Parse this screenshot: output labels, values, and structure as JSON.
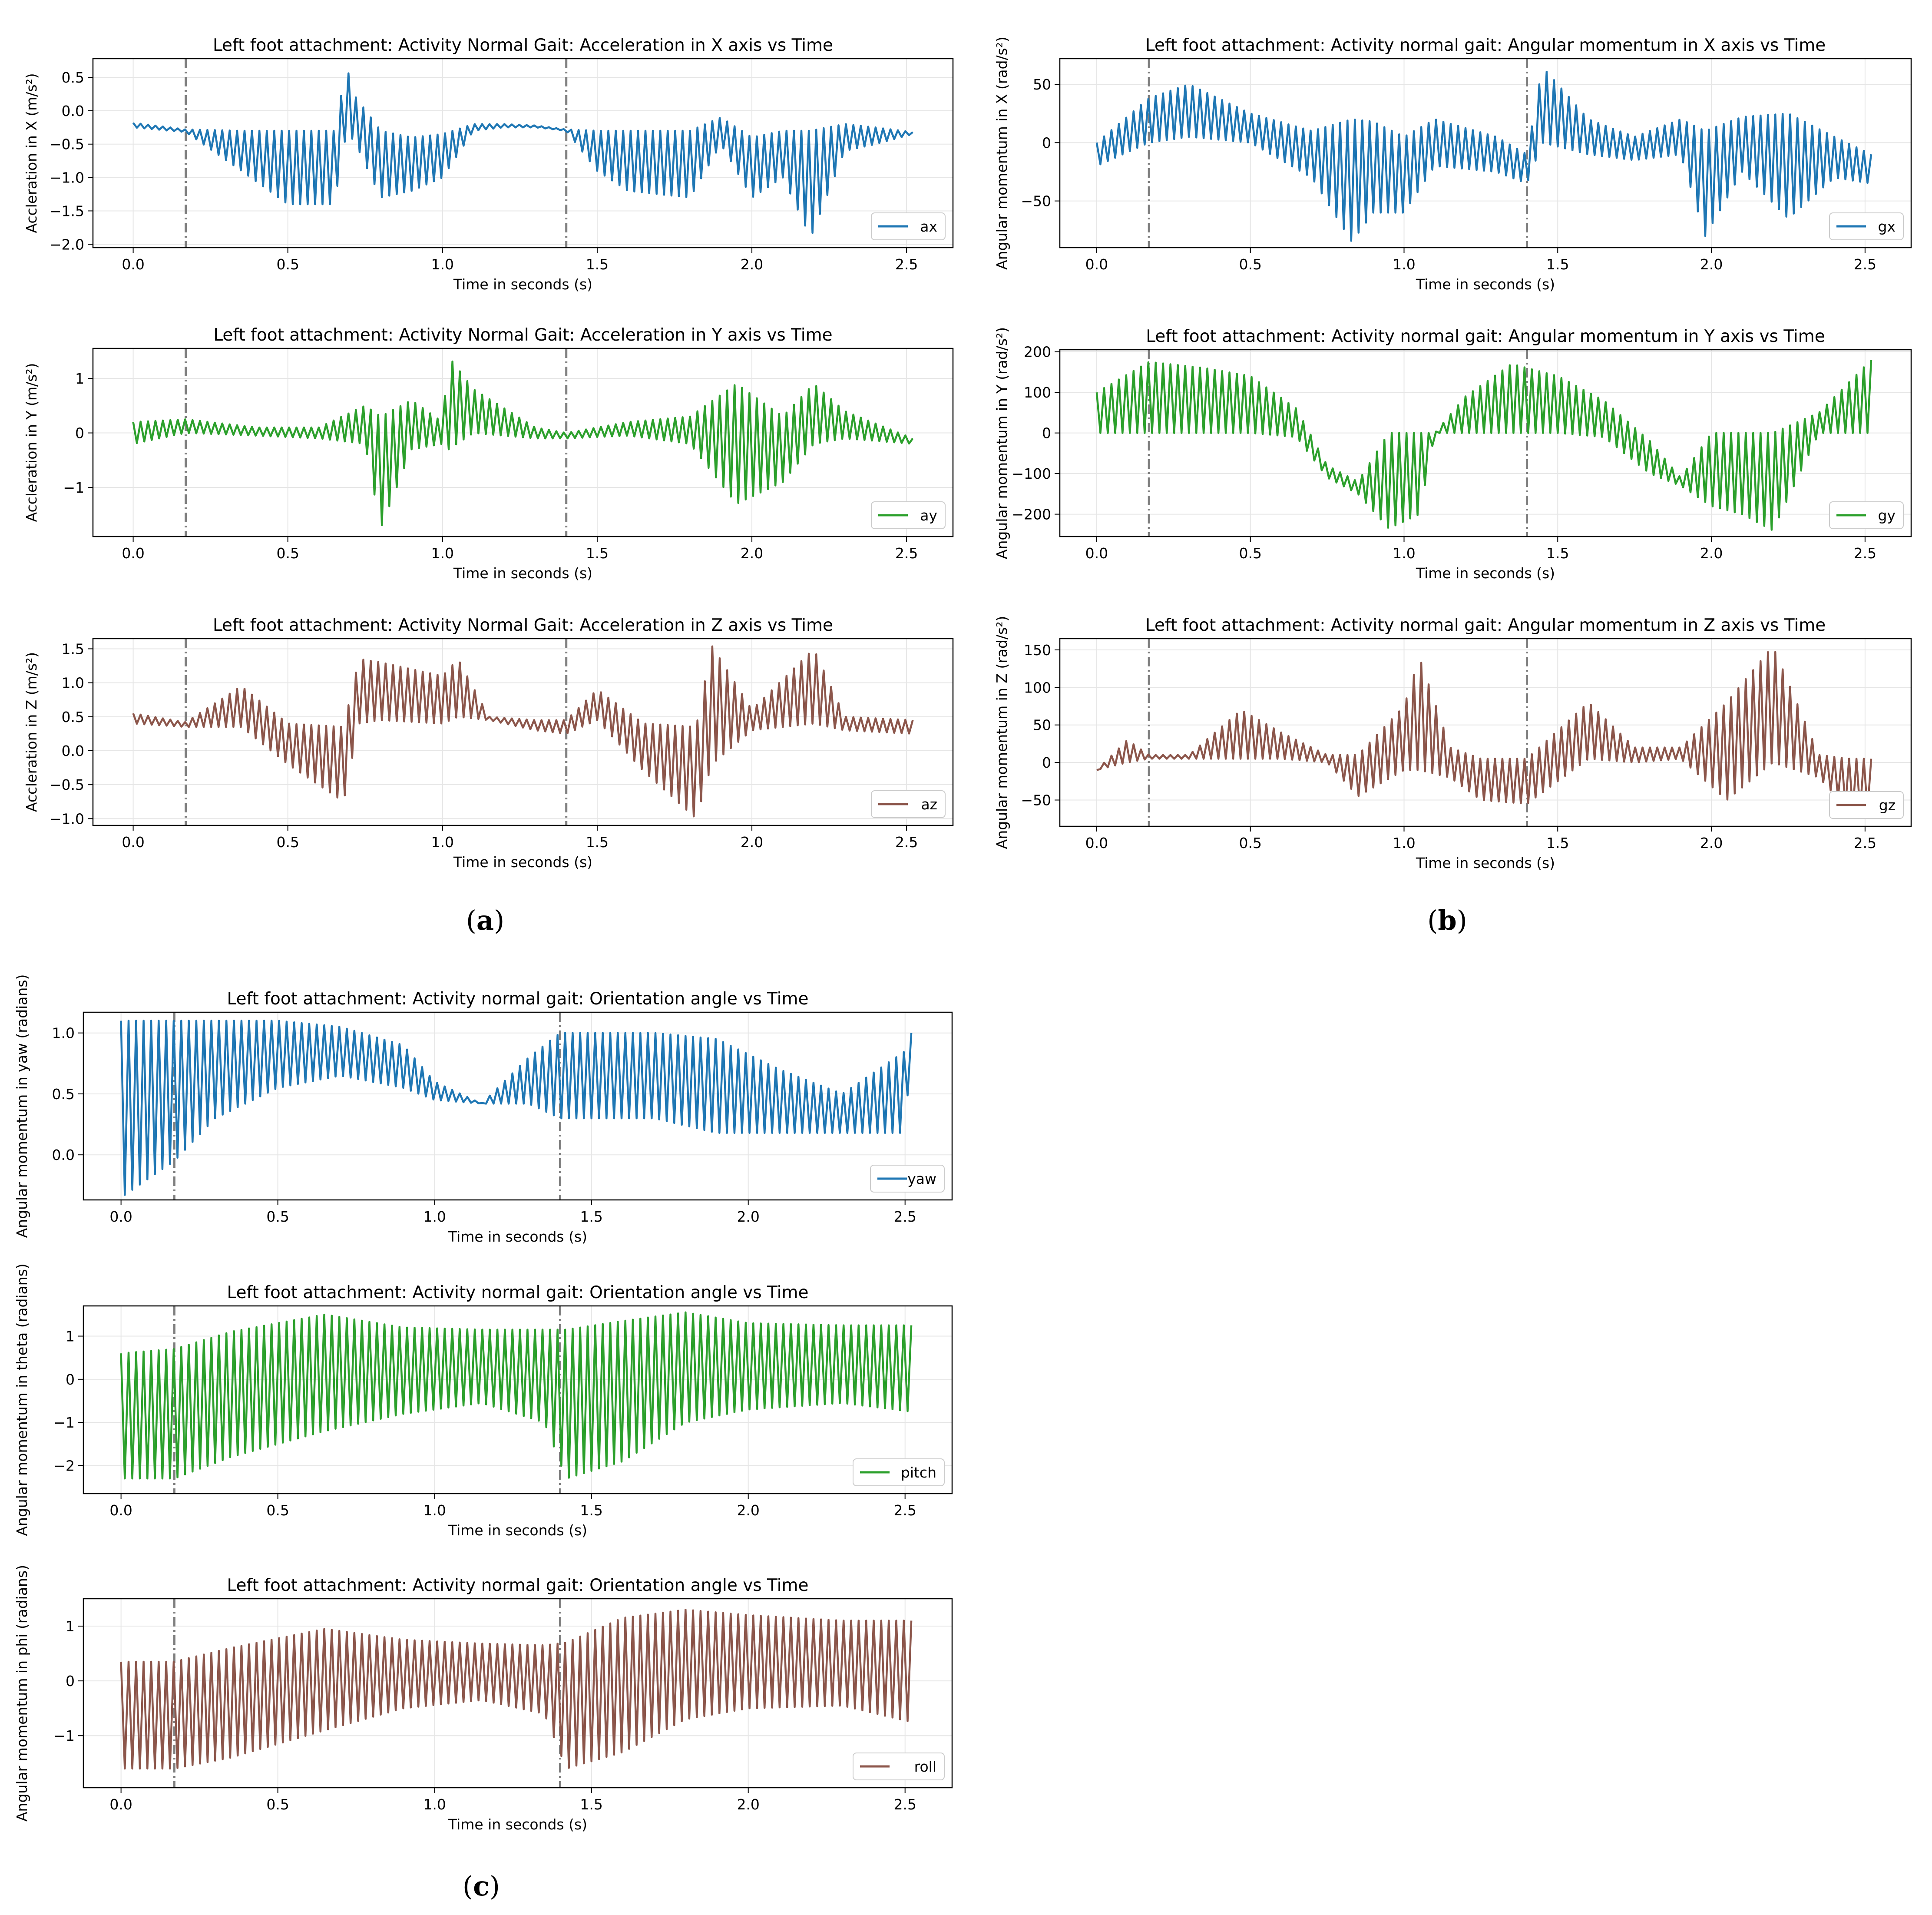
{
  "figure": {
    "captions": [
      {
        "open": "(",
        "letter": "a",
        "close": ")"
      },
      {
        "open": "(",
        "letter": "b",
        "close": ")"
      },
      {
        "open": "(",
        "letter": "c",
        "close": ")"
      }
    ],
    "event_lines_x": [
      0.17,
      1.4
    ]
  },
  "chart_data": [
    {
      "id": "ax",
      "type": "line",
      "panel": "a",
      "title": "Left foot attachment: Activity Normal Gait: Acceleration in X axis vs Time",
      "xlabel": "Time in seconds (s)",
      "ylabel": "Accleration in X (m/s²)",
      "xlim": [
        -0.13,
        2.65
      ],
      "ylim": [
        -2.05,
        0.78
      ],
      "xticks": [
        "0.0",
        "0.5",
        "1.0",
        "1.5",
        "2.0",
        "2.5"
      ],
      "yticks": [
        "0.5",
        "0.0",
        "−0.5",
        "−1.0",
        "−1.5",
        "−2.0"
      ],
      "legend": "ax",
      "color": "#1f77b4",
      "series": [
        {
          "name": "ax",
          "x": [
            0,
            0.17,
            0.35,
            0.5,
            0.65,
            0.69,
            0.72,
            0.8,
            0.9,
            1.0,
            1.1,
            1.2,
            1.3,
            1.4,
            1.5,
            1.6,
            1.8,
            1.9,
            2.0,
            2.1,
            2.19,
            2.3,
            2.4,
            2.52
          ],
          "upper": [
            -0.18,
            -0.28,
            -0.3,
            -0.3,
            -0.3,
            0.65,
            0.2,
            -0.3,
            -0.4,
            -0.35,
            -0.2,
            -0.2,
            -0.22,
            -0.28,
            -0.3,
            -0.3,
            -0.3,
            -0.1,
            -0.4,
            -0.3,
            -0.3,
            -0.2,
            -0.25,
            -0.32
          ],
          "lower": [
            -0.25,
            -0.32,
            -0.9,
            -1.4,
            -1.4,
            -0.3,
            -0.5,
            -1.3,
            -1.2,
            -1.0,
            -0.3,
            -0.25,
            -0.25,
            -0.3,
            -0.9,
            -1.2,
            -1.3,
            -0.5,
            -1.3,
            -1.0,
            -1.9,
            -0.6,
            -0.5,
            -0.35
          ]
        }
      ]
    },
    {
      "id": "ay",
      "type": "line",
      "panel": "a",
      "title": "Left foot attachment: Activity Normal Gait: Acceleration in Y axis vs Time",
      "xlabel": "Time in seconds (s)",
      "ylabel": "Accleration in Y (m/s²)",
      "xlim": [
        -0.13,
        2.65
      ],
      "ylim": [
        -1.9,
        1.55
      ],
      "xticks": [
        "0.0",
        "0.5",
        "1.0",
        "1.5",
        "2.0",
        "2.5"
      ],
      "yticks": [
        "1",
        "0",
        "−1"
      ],
      "legend": "ay",
      "color": "#2ca02c",
      "series": [
        {
          "name": "ay",
          "x": [
            0,
            0.17,
            0.4,
            0.6,
            0.75,
            0.8,
            0.9,
            1.0,
            1.02,
            1.1,
            1.3,
            1.4,
            1.6,
            1.8,
            1.95,
            2.1,
            2.2,
            2.3,
            2.52
          ],
          "upper": [
            0.2,
            0.25,
            0.1,
            0.1,
            0.5,
            0.3,
            0.6,
            0.2,
            1.4,
            0.8,
            0.1,
            0.0,
            0.2,
            0.3,
            0.9,
            0.3,
            0.9,
            0.4,
            -0.1
          ],
          "lower": [
            -0.2,
            0.0,
            -0.05,
            -0.1,
            -0.2,
            -1.75,
            -0.3,
            -0.2,
            -0.3,
            0.0,
            -0.1,
            -0.1,
            -0.05,
            -0.2,
            -1.3,
            -0.9,
            -0.2,
            -0.1,
            -0.2
          ]
        }
      ]
    },
    {
      "id": "az",
      "type": "line",
      "panel": "a",
      "title": "Left foot attachment: Activity Normal Gait: Acceleration in Z axis vs Time",
      "xlabel": "Time in seconds (s)",
      "ylabel": "Accleration in Z (m/s²)",
      "xlim": [
        -0.13,
        2.65
      ],
      "ylim": [
        -1.1,
        1.65
      ],
      "xticks": [
        "0.0",
        "0.5",
        "1.0",
        "1.5",
        "2.0",
        "2.5"
      ],
      "yticks": [
        "1.5",
        "1.0",
        "0.5",
        "0.0",
        "−0.5",
        "−1.0"
      ],
      "legend": "az",
      "color": "#8c564b",
      "series": [
        {
          "name": "az",
          "x": [
            0,
            0.17,
            0.35,
            0.5,
            0.68,
            0.73,
            0.8,
            1.0,
            1.05,
            1.15,
            1.3,
            1.4,
            1.5,
            1.65,
            1.82,
            1.87,
            2.0,
            2.2,
            2.3,
            2.52
          ],
          "upper": [
            0.55,
            0.42,
            0.95,
            0.4,
            0.35,
            1.35,
            1.3,
            1.1,
            1.35,
            0.5,
            0.45,
            0.45,
            0.9,
            0.4,
            0.35,
            1.55,
            0.6,
            1.5,
            0.5,
            0.45
          ],
          "lower": [
            0.4,
            0.35,
            0.35,
            -0.2,
            -0.75,
            0.4,
            0.45,
            0.4,
            0.5,
            0.45,
            0.3,
            0.25,
            0.45,
            -0.3,
            -1.0,
            -0.2,
            0.3,
            0.4,
            0.3,
            0.25
          ]
        }
      ]
    },
    {
      "id": "gx",
      "type": "line",
      "panel": "b",
      "title": "Left foot attachment: Activity normal gait: Angular momentum in X axis vs Time",
      "xlabel": "Time in seconds (s)",
      "ylabel": "Angular momentum in X (rad/s²)",
      "xlim": [
        -0.12,
        2.65
      ],
      "ylim": [
        -90,
        72
      ],
      "xticks": [
        "0.0",
        "0.5",
        "1.0",
        "1.5",
        "2.0",
        "2.5"
      ],
      "yticks": [
        "50",
        "0",
        "−50"
      ],
      "legend": "gx",
      "color": "#1f77b4",
      "series": [
        {
          "name": "gx",
          "x": [
            0,
            0.17,
            0.3,
            0.5,
            0.7,
            0.83,
            0.9,
            1.0,
            1.1,
            1.3,
            1.4,
            1.45,
            1.6,
            1.75,
            1.9,
            1.98,
            2.1,
            2.25,
            2.4,
            2.52
          ],
          "upper": [
            0,
            38,
            50,
            25,
            10,
            20,
            18,
            5,
            20,
            5,
            -10,
            65,
            20,
            5,
            20,
            10,
            22,
            25,
            5,
            -10
          ],
          "lower": [
            -20,
            0,
            5,
            0,
            -30,
            -85,
            -60,
            -60,
            -20,
            -25,
            -35,
            0,
            -10,
            -15,
            -10,
            -80,
            -25,
            -65,
            -30,
            -35
          ]
        }
      ]
    },
    {
      "id": "gy",
      "type": "line",
      "panel": "b",
      "title": "Left foot attachment: Activity normal gait: Angular momentum in Y axis vs Time",
      "xlabel": "Time in seconds (s)",
      "ylabel": "Angular momentum in Y (rad/s²)",
      "xlim": [
        -0.12,
        2.65
      ],
      "ylim": [
        -255,
        205
      ],
      "xticks": [
        "0.0",
        "0.5",
        "1.0",
        "1.5",
        "2.0",
        "2.5"
      ],
      "yticks": [
        "200",
        "100",
        "0",
        "−100",
        "−200"
      ],
      "legend": "gy",
      "color": "#2ca02c",
      "series": [
        {
          "name": "gy",
          "x": [
            0,
            0.17,
            0.35,
            0.5,
            0.65,
            0.75,
            0.85,
            0.95,
            1.05,
            1.1,
            1.2,
            1.35,
            1.5,
            1.65,
            1.8,
            1.9,
            2.0,
            2.1,
            2.2,
            2.35,
            2.52
          ],
          "upper": [
            100,
            175,
            160,
            140,
            60,
            -80,
            -120,
            0,
            0,
            0,
            90,
            170,
            140,
            80,
            -20,
            -110,
            0,
            0,
            0,
            50,
            180
          ],
          "lower": [
            0,
            0,
            0,
            0,
            -10,
            -110,
            -150,
            -235,
            -200,
            0,
            0,
            0,
            0,
            -10,
            -100,
            -130,
            -180,
            -200,
            -240,
            0,
            0
          ]
        }
      ]
    },
    {
      "id": "gz",
      "type": "line",
      "panel": "b",
      "title": "Left foot attachment: Activity normal gait: Angular momentum in Z axis vs Time",
      "xlabel": "Time in seconds (s)",
      "ylabel": "Angular momentum in Z (rad/s²)",
      "xlim": [
        -0.12,
        2.65
      ],
      "ylim": [
        -85,
        165
      ],
      "xticks": [
        "0.0",
        "0.5",
        "1.0",
        "1.5",
        "2.0",
        "2.5"
      ],
      "yticks": [
        "150",
        "100",
        "50",
        "0",
        "−50"
      ],
      "legend": "gz",
      "color": "#8c564b",
      "series": [
        {
          "name": "gz",
          "x": [
            0,
            0.1,
            0.17,
            0.3,
            0.47,
            0.6,
            0.75,
            0.85,
            1.0,
            1.05,
            1.15,
            1.25,
            1.4,
            1.6,
            1.75,
            1.9,
            2.05,
            2.2,
            2.35,
            2.45,
            2.52
          ],
          "upper": [
            -10,
            30,
            10,
            10,
            70,
            40,
            10,
            10,
            75,
            140,
            20,
            5,
            5,
            80,
            20,
            20,
            80,
            155,
            10,
            5,
            5
          ],
          "lower": [
            -10,
            0,
            5,
            5,
            5,
            5,
            0,
            -45,
            -10,
            -10,
            -20,
            -50,
            -55,
            5,
            0,
            5,
            -50,
            0,
            -20,
            -65,
            -65
          ]
        }
      ]
    },
    {
      "id": "yaw",
      "type": "line",
      "panel": "c",
      "title": "Left foot attachment: Activity normal gait: Orientation angle vs Time",
      "xlabel": "Time in seconds (s)",
      "ylabel": "Angular momentum in yaw (radians)",
      "xlim": [
        -0.12,
        2.65
      ],
      "ylim": [
        -0.37,
        1.17
      ],
      "xticks": [
        "0.0",
        "0.5",
        "1.0",
        "1.5",
        "2.0",
        "2.5"
      ],
      "yticks": [
        "1.0",
        "0.5",
        "0.0"
      ],
      "legend": "yaw",
      "color": "#1f77b4",
      "series": [
        {
          "name": "yaw",
          "x": [
            0,
            0.17,
            0.3,
            0.5,
            0.7,
            0.9,
            1.0,
            1.15,
            1.3,
            1.4,
            1.5,
            1.7,
            1.9,
            2.1,
            2.3,
            2.5,
            2.52
          ],
          "upper": [
            1.1,
            1.1,
            1.1,
            1.1,
            1.05,
            0.9,
            0.6,
            0.42,
            0.8,
            1.0,
            1.0,
            1.0,
            0.95,
            0.7,
            0.5,
            0.85,
            1.0
          ],
          "lower": [
            -0.35,
            -0.05,
            0.3,
            0.55,
            0.65,
            0.55,
            0.45,
            0.42,
            0.42,
            0.3,
            0.3,
            0.3,
            0.18,
            0.18,
            0.18,
            0.18,
            0.95
          ]
        }
      ]
    },
    {
      "id": "pitch",
      "type": "line",
      "panel": "c",
      "title": "Left foot attachment: Activity normal gait: Orientation angle vs Time",
      "xlabel": "Time in seconds (s)",
      "ylabel": "Angular momentum in theta (radians)",
      "xlim": [
        -0.12,
        2.65
      ],
      "ylim": [
        -2.65,
        1.7
      ],
      "xticks": [
        "0.0",
        "0.5",
        "1.0",
        "1.5",
        "2.0",
        "2.5"
      ],
      "yticks": [
        "1",
        "0",
        "−1",
        "−2"
      ],
      "legend": "pitch",
      "color": "#2ca02c",
      "series": [
        {
          "name": "pitch",
          "x": [
            0,
            0.17,
            0.35,
            0.65,
            0.9,
            1.15,
            1.35,
            1.42,
            1.6,
            1.8,
            2.0,
            2.3,
            2.52
          ],
          "upper": [
            0.6,
            0.7,
            1.1,
            1.5,
            1.2,
            1.15,
            1.15,
            1.15,
            1.35,
            1.55,
            1.3,
            1.25,
            1.25
          ],
          "lower": [
            -2.3,
            -2.3,
            -1.8,
            -1.2,
            -0.8,
            -0.55,
            -1.0,
            -2.3,
            -1.9,
            -1.0,
            -0.7,
            -0.55,
            -0.75
          ]
        }
      ]
    },
    {
      "id": "roll",
      "type": "line",
      "panel": "c",
      "title": "Left foot attachment: Activity normal gait: Orientation angle vs Time",
      "xlabel": "Time in seconds (s)",
      "ylabel": "Angular momentum in phi (radians)",
      "xlim": [
        -0.12,
        2.65
      ],
      "ylim": [
        -1.95,
        1.5
      ],
      "xticks": [
        "0.0",
        "0.5",
        "1.0",
        "1.5",
        "2.0",
        "2.5"
      ],
      "yticks": [
        "1",
        "0",
        "−1"
      ],
      "legend": "roll",
      "color": "#8c564b",
      "series": [
        {
          "name": "roll",
          "x": [
            0,
            0.17,
            0.35,
            0.65,
            0.9,
            1.15,
            1.35,
            1.42,
            1.6,
            1.8,
            2.0,
            2.3,
            2.52
          ],
          "upper": [
            0.35,
            0.35,
            0.6,
            0.95,
            0.75,
            0.68,
            0.65,
            0.7,
            1.15,
            1.3,
            1.2,
            1.1,
            1.1
          ],
          "lower": [
            -1.6,
            -1.6,
            -1.4,
            -0.9,
            -0.5,
            -0.35,
            -0.6,
            -1.6,
            -1.3,
            -0.7,
            -0.5,
            -0.45,
            -0.75
          ]
        }
      ]
    }
  ]
}
